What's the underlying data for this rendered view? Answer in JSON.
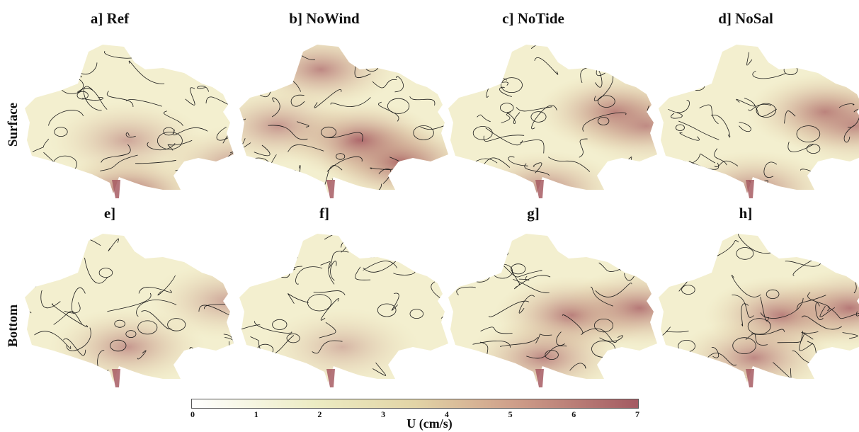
{
  "columns": [
    {
      "title": "a] Ref"
    },
    {
      "title": "b] NoWind"
    },
    {
      "title": "c] NoTide"
    },
    {
      "title": "d] NoSal"
    }
  ],
  "bottom_titles": [
    "e]",
    "f]",
    "g]",
    "h]"
  ],
  "rows": [
    {
      "label": "Surface"
    },
    {
      "label": "Bottom"
    }
  ],
  "colorbar": {
    "label": "U (cm/s)",
    "ticks": [
      "0",
      "1",
      "2",
      "3",
      "4",
      "5",
      "6",
      "7"
    ],
    "min": 0,
    "max": 7,
    "colors": [
      "#ffffff",
      "#ecebc2",
      "#e2d4a6",
      "#cf9f8a",
      "#a35a62"
    ]
  },
  "panel_colors": {
    "fill_low": "#f3efcf",
    "fill_mid": "#e3d1a3",
    "fill_high": "#a75c63",
    "line": "#1a1a1a"
  }
}
